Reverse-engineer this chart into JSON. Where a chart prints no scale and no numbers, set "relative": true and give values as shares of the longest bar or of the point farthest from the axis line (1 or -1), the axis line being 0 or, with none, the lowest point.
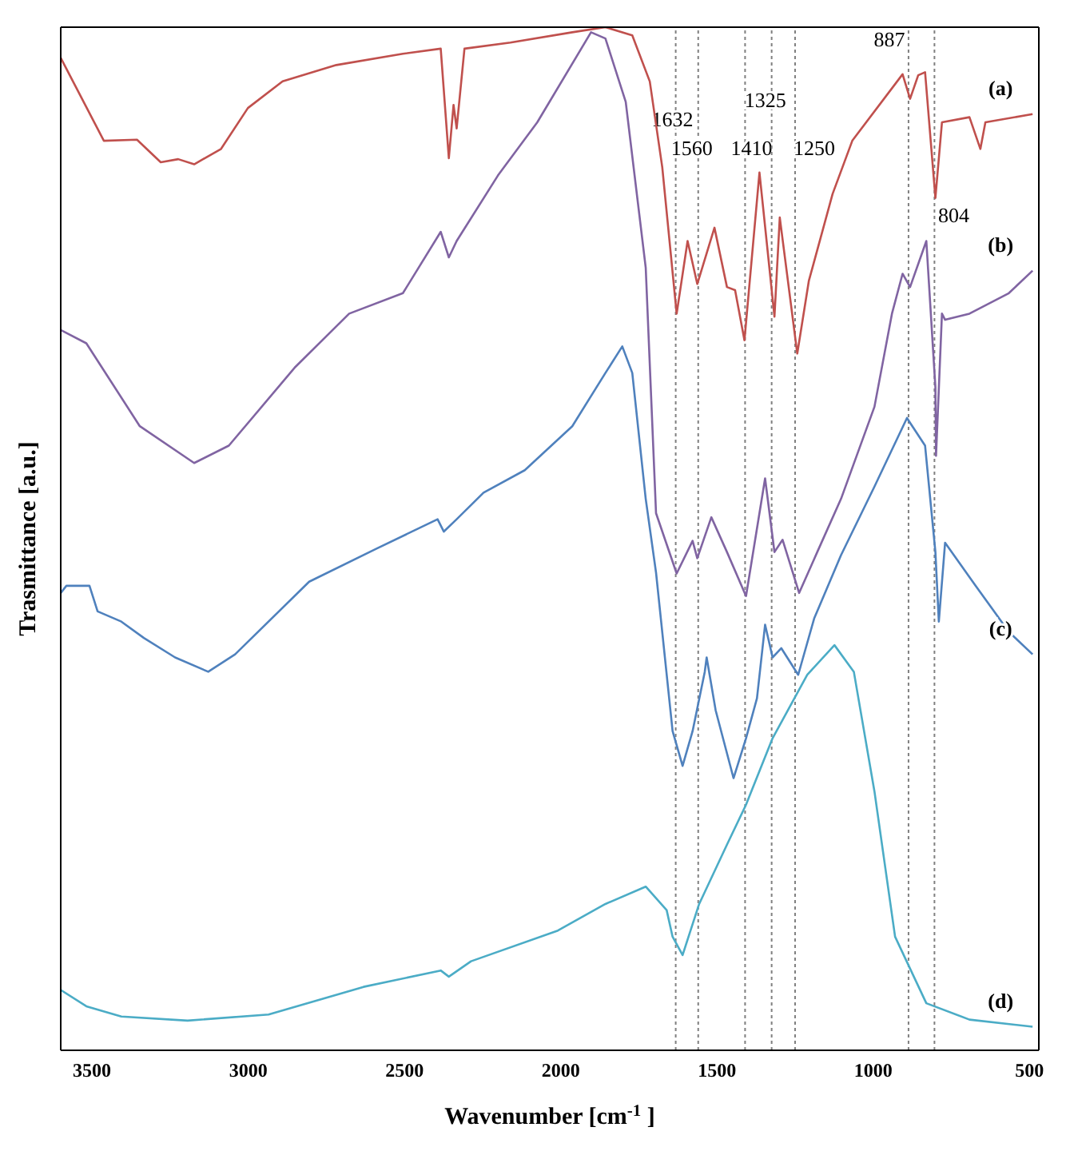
{
  "chart_data": {
    "type": "line",
    "relative": true,
    "xlabel": "Wavenumber [cm$^{-1}$]",
    "ylabel": "Trasmittance [a.u.]",
    "xlim": [
      3600,
      470
    ],
    "xticks": [
      3500,
      3000,
      2500,
      2000,
      1500,
      1000,
      500
    ],
    "marker": "none",
    "line_style": "solid",
    "series": [
      {
        "name": "(a)",
        "color": "#c0504d",
        "x": [
          3600,
          3462,
          3356,
          3280,
          3224,
          3173,
          3087,
          3001,
          2890,
          2718,
          2505,
          2384,
          2358,
          2343,
          2333,
          2308,
          2161,
          1963,
          1857,
          1771,
          1715,
          1675,
          1629,
          1594,
          1563,
          1508,
          1468,
          1442,
          1412,
          1364,
          1316,
          1299,
          1243,
          1206,
          1130,
          1067,
          906,
          882,
          856,
          834,
          801,
          780,
          692,
          657,
          641,
          490
        ],
        "values": [
          0.97,
          0.889,
          0.89,
          0.868,
          0.871,
          0.866,
          0.881,
          0.921,
          0.947,
          0.963,
          0.974,
          0.979,
          0.872,
          0.924,
          0.901,
          0.979,
          0.985,
          0.995,
          1.0,
          0.992,
          0.947,
          0.863,
          0.72,
          0.791,
          0.749,
          0.804,
          0.746,
          0.743,
          0.694,
          0.858,
          0.717,
          0.814,
          0.681,
          0.752,
          0.837,
          0.889,
          0.954,
          0.93,
          0.953,
          0.956,
          0.833,
          0.907,
          0.912,
          0.881,
          0.907,
          0.915
        ]
      },
      {
        "name": "(b)",
        "color": "#8064a2",
        "x": [
          3600,
          3518,
          3347,
          3173,
          3062,
          2849,
          2677,
          2505,
          2384,
          2358,
          2333,
          2201,
          2075,
          1903,
          1857,
          1792,
          1728,
          1695,
          1629,
          1578,
          1563,
          1518,
          1468,
          1407,
          1346,
          1316,
          1290,
          1237,
          1179,
          1103,
          996,
          940,
          906,
          882,
          830,
          801,
          799,
          780,
          770,
          692,
          566,
          490
        ],
        "values": [
          0.704,
          0.691,
          0.61,
          0.574,
          0.591,
          0.668,
          0.72,
          0.74,
          0.8,
          0.775,
          0.791,
          0.855,
          0.907,
          0.995,
          0.989,
          0.927,
          0.765,
          0.525,
          0.466,
          0.498,
          0.481,
          0.521,
          0.487,
          0.444,
          0.559,
          0.487,
          0.499,
          0.447,
          0.487,
          0.539,
          0.629,
          0.72,
          0.759,
          0.746,
          0.791,
          0.648,
          0.581,
          0.72,
          0.714,
          0.72,
          0.74,
          0.762
        ]
      },
      {
        "name": "(c)",
        "color": "#4f81bd",
        "x": [
          3600,
          3582,
          3508,
          3482,
          3406,
          3334,
          3234,
          3128,
          3042,
          2805,
          2592,
          2394,
          2374,
          2333,
          2247,
          2115,
          1963,
          1857,
          1803,
          1771,
          1728,
          1695,
          1642,
          1610,
          1578,
          1539,
          1533,
          1504,
          1447,
          1407,
          1372,
          1346,
          1322,
          1294,
          1240,
          1189,
          1103,
          996,
          892,
          834,
          801,
          790,
          770,
          672,
          566,
          490
        ],
        "values": [
          0.447,
          0.454,
          0.454,
          0.429,
          0.419,
          0.403,
          0.384,
          0.37,
          0.387,
          0.458,
          0.49,
          0.519,
          0.507,
          0.519,
          0.545,
          0.567,
          0.61,
          0.662,
          0.688,
          0.662,
          0.539,
          0.467,
          0.312,
          0.278,
          0.312,
          0.37,
          0.384,
          0.332,
          0.266,
          0.305,
          0.344,
          0.416,
          0.384,
          0.393,
          0.367,
          0.422,
          0.484,
          0.551,
          0.618,
          0.591,
          0.487,
          0.419,
          0.496,
          0.454,
          0.409,
          0.387
        ]
      },
      {
        "name": "(d)",
        "color": "#4bacc6",
        "x": [
          3600,
          3518,
          3406,
          3194,
          2935,
          2631,
          2384,
          2358,
          2287,
          2009,
          1857,
          1728,
          1661,
          1642,
          1610,
          1557,
          1468,
          1407,
          1322,
          1211,
          1124,
          1062,
          996,
          930,
          830,
          692,
          490
        ],
        "values": [
          0.059,
          0.043,
          0.033,
          0.029,
          0.035,
          0.062,
          0.078,
          0.072,
          0.087,
          0.117,
          0.143,
          0.16,
          0.137,
          0.111,
          0.093,
          0.143,
          0.201,
          0.24,
          0.305,
          0.367,
          0.396,
          0.37,
          0.253,
          0.111,
          0.046,
          0.03,
          0.023
        ]
      }
    ],
    "ref_lines": [
      {
        "axis": "x",
        "value": 1632,
        "label": "1632",
        "line_style": "dotted",
        "color": "#808080"
      },
      {
        "axis": "x",
        "value": 1560,
        "label": "1560",
        "line_style": "dotted",
        "color": "#808080"
      },
      {
        "axis": "x",
        "value": 1410,
        "label": "1410",
        "line_style": "dotted",
        "color": "#808080"
      },
      {
        "axis": "x",
        "value": 1325,
        "label": "1325",
        "line_style": "dotted",
        "color": "#808080"
      },
      {
        "axis": "x",
        "value": 1250,
        "label": "1250",
        "line_style": "dotted",
        "color": "#808080"
      },
      {
        "axis": "x",
        "value": 887,
        "label": "887",
        "line_style": "dotted",
        "color": "#808080"
      },
      {
        "axis": "x",
        "value": 804,
        "label": "804",
        "line_style": "dotted",
        "color": "#808080"
      }
    ]
  }
}
